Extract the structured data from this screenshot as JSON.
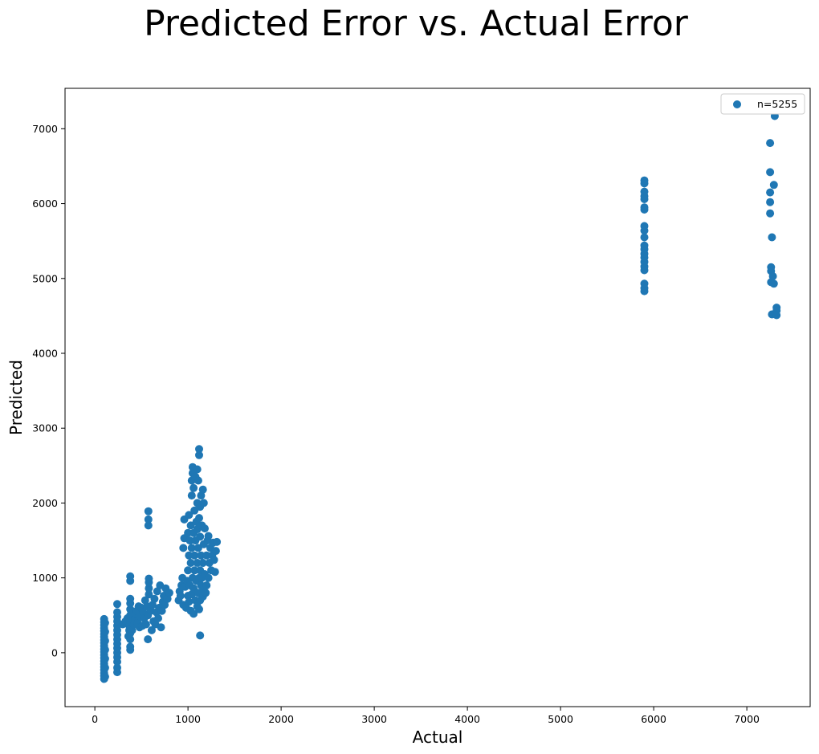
{
  "chart_data": {
    "type": "scatter",
    "title": "Predicted Error vs. Actual Error",
    "xlabel": "Actual",
    "ylabel": "Predicted",
    "xlim": [
      -320,
      7680
    ],
    "ylim": [
      -720,
      7540
    ],
    "xticks": [
      0,
      1000,
      2000,
      3000,
      4000,
      5000,
      6000,
      7000
    ],
    "yticks": [
      0,
      1000,
      2000,
      3000,
      4000,
      5000,
      6000,
      7000
    ],
    "grid": false,
    "legend_position": "top-right",
    "color": "#1f77b4",
    "series": [
      {
        "name": "n=5255",
        "points": [
          [
            100,
            -350
          ],
          [
            100,
            -310
          ],
          [
            100,
            -270
          ],
          [
            100,
            -230
          ],
          [
            100,
            -190
          ],
          [
            100,
            -150
          ],
          [
            100,
            -110
          ],
          [
            100,
            -70
          ],
          [
            100,
            -30
          ],
          [
            100,
            10
          ],
          [
            100,
            50
          ],
          [
            100,
            90
          ],
          [
            100,
            130
          ],
          [
            100,
            170
          ],
          [
            100,
            210
          ],
          [
            100,
            250
          ],
          [
            100,
            290
          ],
          [
            100,
            330
          ],
          [
            100,
            370
          ],
          [
            100,
            410
          ],
          [
            100,
            450
          ],
          [
            110,
            -320
          ],
          [
            110,
            -200
          ],
          [
            110,
            -80
          ],
          [
            110,
            40
          ],
          [
            110,
            160
          ],
          [
            110,
            280
          ],
          [
            110,
            400
          ],
          [
            240,
            -260
          ],
          [
            240,
            -200
          ],
          [
            240,
            -120
          ],
          [
            240,
            -60
          ],
          [
            240,
            0
          ],
          [
            240,
            60
          ],
          [
            240,
            120
          ],
          [
            240,
            180
          ],
          [
            240,
            240
          ],
          [
            240,
            300
          ],
          [
            240,
            360
          ],
          [
            240,
            420
          ],
          [
            240,
            480
          ],
          [
            240,
            540
          ],
          [
            240,
            650
          ],
          [
            300,
            380
          ],
          [
            330,
            420
          ],
          [
            350,
            460
          ],
          [
            360,
            220
          ],
          [
            370,
            300
          ],
          [
            370,
            360
          ],
          [
            380,
            40
          ],
          [
            380,
            80
          ],
          [
            380,
            180
          ],
          [
            380,
            260
          ],
          [
            380,
            420
          ],
          [
            380,
            500
          ],
          [
            380,
            580
          ],
          [
            380,
            660
          ],
          [
            380,
            720
          ],
          [
            380,
            960
          ],
          [
            380,
            1020
          ],
          [
            400,
            300
          ],
          [
            420,
            380
          ],
          [
            430,
            460
          ],
          [
            440,
            520
          ],
          [
            450,
            560
          ],
          [
            460,
            400
          ],
          [
            470,
            620
          ],
          [
            480,
            340
          ],
          [
            490,
            480
          ],
          [
            500,
            600
          ],
          [
            510,
            360
          ],
          [
            520,
            540
          ],
          [
            530,
            460
          ],
          [
            540,
            700
          ],
          [
            550,
            380
          ],
          [
            560,
            620
          ],
          [
            570,
            180
          ],
          [
            570,
            500
          ],
          [
            575,
            1700
          ],
          [
            575,
            1780
          ],
          [
            575,
            1890
          ],
          [
            580,
            780
          ],
          [
            580,
            860
          ],
          [
            580,
            940
          ],
          [
            580,
            990
          ],
          [
            600,
            560
          ],
          [
            610,
            300
          ],
          [
            620,
            640
          ],
          [
            630,
            420
          ],
          [
            640,
            720
          ],
          [
            650,
            380
          ],
          [
            660,
            540
          ],
          [
            670,
            820
          ],
          [
            680,
            460
          ],
          [
            690,
            600
          ],
          [
            700,
            900
          ],
          [
            710,
            340
          ],
          [
            720,
            560
          ],
          [
            730,
            680
          ],
          [
            740,
            760
          ],
          [
            750,
            640
          ],
          [
            760,
            860
          ],
          [
            780,
            720
          ],
          [
            800,
            800
          ],
          [
            900,
            700
          ],
          [
            910,
            820
          ],
          [
            920,
            760
          ],
          [
            930,
            900
          ],
          [
            940,
            1000
          ],
          [
            950,
            640
          ],
          [
            950,
            1400
          ],
          [
            960,
            1530
          ],
          [
            960,
            1780
          ],
          [
            970,
            880
          ],
          [
            980,
            600
          ],
          [
            990,
            960
          ],
          [
            1000,
            760
          ],
          [
            1000,
            1100
          ],
          [
            1000,
            1600
          ],
          [
            1010,
            680
          ],
          [
            1010,
            1300
          ],
          [
            1010,
            1840
          ],
          [
            1020,
            900
          ],
          [
            1020,
            1500
          ],
          [
            1030,
            560
          ],
          [
            1030,
            1200
          ],
          [
            1030,
            1700
          ],
          [
            1040,
            780
          ],
          [
            1040,
            1400
          ],
          [
            1040,
            2100
          ],
          [
            1040,
            2300
          ],
          [
            1050,
            1000
          ],
          [
            1050,
            2400
          ],
          [
            1050,
            2480
          ],
          [
            1060,
            520
          ],
          [
            1060,
            860
          ],
          [
            1060,
            1600
          ],
          [
            1060,
            2200
          ],
          [
            1070,
            1100
          ],
          [
            1070,
            1300
          ],
          [
            1070,
            1900
          ],
          [
            1080,
            700
          ],
          [
            1080,
            1500
          ],
          [
            1080,
            2350
          ],
          [
            1090,
            960
          ],
          [
            1090,
            1750
          ],
          [
            1100,
            620
          ],
          [
            1100,
            1200
          ],
          [
            1100,
            1650
          ],
          [
            1100,
            2000
          ],
          [
            1100,
            2450
          ],
          [
            1110,
            800
          ],
          [
            1110,
            1400
          ],
          [
            1110,
            2300
          ],
          [
            1120,
            580
          ],
          [
            1120,
            1000
          ],
          [
            1120,
            1800
          ],
          [
            1120,
            2640
          ],
          [
            1120,
            2720
          ],
          [
            1130,
            230
          ],
          [
            1130,
            700
          ],
          [
            1130,
            1100
          ],
          [
            1130,
            1550
          ],
          [
            1130,
            1950
          ],
          [
            1140,
            900
          ],
          [
            1140,
            1300
          ],
          [
            1140,
            2100
          ],
          [
            1150,
            1000
          ],
          [
            1150,
            1700
          ],
          [
            1160,
            750
          ],
          [
            1160,
            1200
          ],
          [
            1160,
            2180
          ],
          [
            1170,
            860
          ],
          [
            1170,
            1450
          ],
          [
            1170,
            2000
          ],
          [
            1180,
            1050
          ],
          [
            1180,
            1660
          ],
          [
            1190,
            800
          ],
          [
            1200,
            1300
          ],
          [
            1200,
            900
          ],
          [
            1210,
            1500
          ],
          [
            1220,
            1000
          ],
          [
            1220,
            1560
          ],
          [
            1230,
            1200
          ],
          [
            1240,
            1400
          ],
          [
            1250,
            1100
          ],
          [
            1260,
            1300
          ],
          [
            1270,
            1470
          ],
          [
            1280,
            1240
          ],
          [
            1290,
            1080
          ],
          [
            1300,
            1360
          ],
          [
            1310,
            1480
          ],
          [
            5900,
            4830
          ],
          [
            5900,
            4870
          ],
          [
            5900,
            4930
          ],
          [
            5900,
            5110
          ],
          [
            5900,
            5160
          ],
          [
            5900,
            5220
          ],
          [
            5900,
            5280
          ],
          [
            5900,
            5330
          ],
          [
            5900,
            5390
          ],
          [
            5900,
            5440
          ],
          [
            5900,
            5550
          ],
          [
            5900,
            5640
          ],
          [
            5900,
            5700
          ],
          [
            5900,
            5920
          ],
          [
            5900,
            5950
          ],
          [
            5900,
            6060
          ],
          [
            5900,
            6100
          ],
          [
            5900,
            6160
          ],
          [
            5900,
            6270
          ],
          [
            5900,
            6310
          ],
          [
            7250,
            6810
          ],
          [
            7250,
            6420
          ],
          [
            7250,
            6150
          ],
          [
            7250,
            6020
          ],
          [
            7250,
            5870
          ],
          [
            7260,
            5150
          ],
          [
            7260,
            5100
          ],
          [
            7260,
            4950
          ],
          [
            7270,
            5550
          ],
          [
            7270,
            4520
          ],
          [
            7280,
            5030
          ],
          [
            7290,
            4930
          ],
          [
            7290,
            6250
          ],
          [
            7300,
            7170
          ],
          [
            7320,
            4610
          ],
          [
            7320,
            4570
          ],
          [
            7320,
            4510
          ]
        ]
      }
    ]
  }
}
